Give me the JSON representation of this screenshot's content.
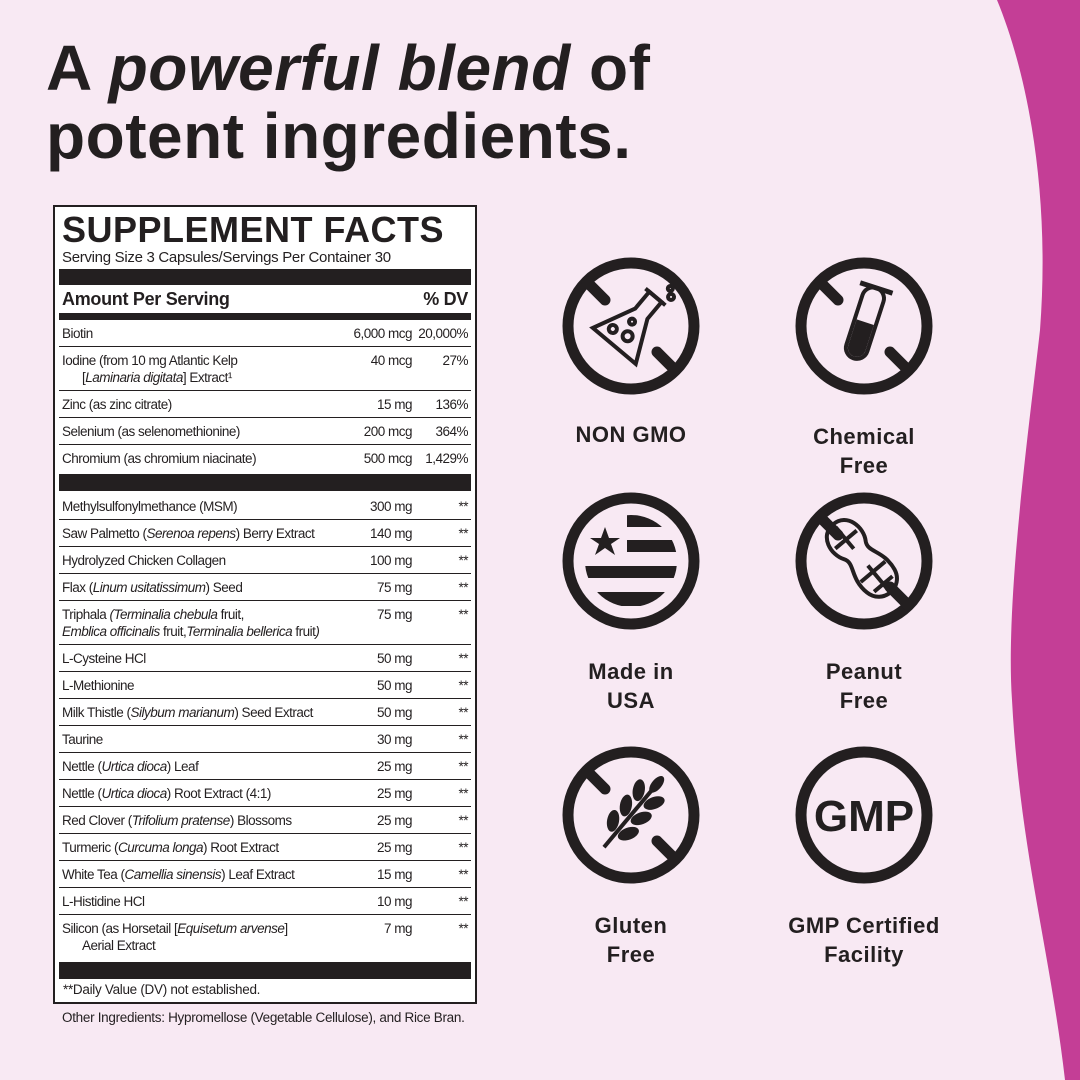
{
  "colors": {
    "background": "#f8e9f3",
    "accent": "#c43e96",
    "ink": "#231f20"
  },
  "headline": {
    "line1_a": "A ",
    "line1_b": "powerful blend",
    "line1_c": " of",
    "line2": "potent ingredients."
  },
  "facts": {
    "title": "SUPPLEMENT FACTS",
    "serving": "Serving Size 3 Capsules/Servings Per Container 30",
    "amount_header": "Amount Per Serving",
    "dv_header": "% DV",
    "group1": [
      {
        "name": [
          {
            "t": "Biotin"
          }
        ],
        "amount": "6,000 mcg",
        "dv": "20,000%"
      },
      {
        "name": [
          {
            "t": " Iodine (from 10 mg Atlantic Kelp"
          }
        ],
        "line2": [
          {
            "t": "["
          },
          {
            "t": "Laminaria digitata",
            "i": true
          },
          {
            "t": "] Extract¹"
          }
        ],
        "amount": "40 mcg",
        "dv": "27%"
      },
      {
        "name": [
          {
            "t": "Zinc (as zinc citrate)"
          }
        ],
        "amount": "15 mg",
        "dv": "136%"
      },
      {
        "name": [
          {
            "t": "Selenium (as selenomethionine)"
          }
        ],
        "amount": "200 mcg",
        "dv": "364%"
      },
      {
        "name": [
          {
            "t": "Chromium (as chromium niacinate)"
          }
        ],
        "amount": "500 mcg",
        "dv": "1,429%"
      }
    ],
    "group2": [
      {
        "name": [
          {
            "t": "Methylsulfonylmethance (MSM)"
          }
        ],
        "amount": "300 mg",
        "dv": "**"
      },
      {
        "name": [
          {
            "t": "Saw Palmetto ("
          },
          {
            "t": "Serenoa repens",
            "i": true
          },
          {
            "t": ") Berry Extract"
          }
        ],
        "amount": "140 mg",
        "dv": "**"
      },
      {
        "name": [
          {
            "t": "Hydrolyzed Chicken Collagen"
          }
        ],
        "amount": "100 mg",
        "dv": "**"
      },
      {
        "name": [
          {
            "t": "Flax ("
          },
          {
            "t": "Linum usitatissimum",
            "i": true
          },
          {
            "t": ") Seed"
          }
        ],
        "amount": "75 mg",
        "dv": "**"
      },
      {
        "name": [
          {
            "t": "Triphala "
          },
          {
            "t": "(Terminalia chebula",
            "i": true
          },
          {
            "t": " fruit,"
          }
        ],
        "line2": [
          {
            "t": "Emblica officinalis",
            "i": true
          },
          {
            "t": " fruit,"
          },
          {
            "t": "Terminalia bellerica",
            "i": true
          },
          {
            "t": " fruit"
          },
          {
            "t": ")",
            "i": true
          }
        ],
        "line2_noindent": true,
        "amount": "75 mg",
        "dv": "**"
      },
      {
        "name": [
          {
            "t": "L-Cysteine HCl"
          }
        ],
        "amount": "50 mg",
        "dv": "**"
      },
      {
        "name": [
          {
            "t": "L-Methionine"
          }
        ],
        "amount": "50 mg",
        "dv": "**"
      },
      {
        "name": [
          {
            "t": "Milk Thistle ("
          },
          {
            "t": "Silybum marianum",
            "i": true
          },
          {
            "t": ") Seed Extract"
          }
        ],
        "amount": "50 mg",
        "dv": "**"
      },
      {
        "name": [
          {
            "t": "Taurine"
          }
        ],
        "amount": "30 mg",
        "dv": "**"
      },
      {
        "name": [
          {
            "t": "Nettle ("
          },
          {
            "t": "Urtica dioca",
            "i": true
          },
          {
            "t": ") Leaf"
          }
        ],
        "amount": "25 mg",
        "dv": "**"
      },
      {
        "name": [
          {
            "t": "Nettle ("
          },
          {
            "t": "Urtica dioca",
            "i": true
          },
          {
            "t": ")  Root Extract (4:1)"
          }
        ],
        "amount": "25 mg",
        "dv": "**"
      },
      {
        "name": [
          {
            "t": "Red Clover ("
          },
          {
            "t": "Trifolium pratense",
            "i": true
          },
          {
            "t": ") Blossoms"
          }
        ],
        "amount": "25 mg",
        "dv": "**"
      },
      {
        "name": [
          {
            "t": "Turmeric ("
          },
          {
            "t": "Curcuma longa",
            "i": true
          },
          {
            "t": ") Root Extract"
          }
        ],
        "amount": "25 mg",
        "dv": "**"
      },
      {
        "name": [
          {
            "t": "White Tea ("
          },
          {
            "t": "Camellia sinensis",
            "i": true
          },
          {
            "t": ") Leaf Extract"
          }
        ],
        "amount": "15 mg",
        "dv": "**"
      },
      {
        "name": [
          {
            "t": "L-Histidine HCl"
          }
        ],
        "amount": "10 mg",
        "dv": "**"
      },
      {
        "name": [
          {
            "t": "Silicon (as Horsetail ["
          },
          {
            "t": "Equisetum arvense",
            "i": true
          },
          {
            "t": "]"
          }
        ],
        "line2": [
          {
            "t": "Aerial Extract"
          }
        ],
        "amount": "7 mg",
        "dv": "**"
      }
    ],
    "footnote": "**Daily Value (DV) not established.",
    "other": "Other Ingredients: Hypromellose (Vegetable Cellulose), and Rice Bran."
  },
  "badges": [
    {
      "icon": "no-flask-icon",
      "line1": "NON GMO",
      "line2": ""
    },
    {
      "icon": "no-test-tube-icon",
      "line1": "Chemical",
      "line2": "Free"
    },
    {
      "icon": "usa-flag-icon",
      "line1": "Made in",
      "line2": "USA"
    },
    {
      "icon": "no-peanut-icon",
      "line1": "Peanut",
      "line2": "Free"
    },
    {
      "icon": "no-wheat-icon",
      "line1": "Gluten",
      "line2": "Free"
    },
    {
      "icon": "gmp-icon",
      "line1": "GMP Certified",
      "line2": "Facility",
      "glyph": "GMP"
    }
  ]
}
